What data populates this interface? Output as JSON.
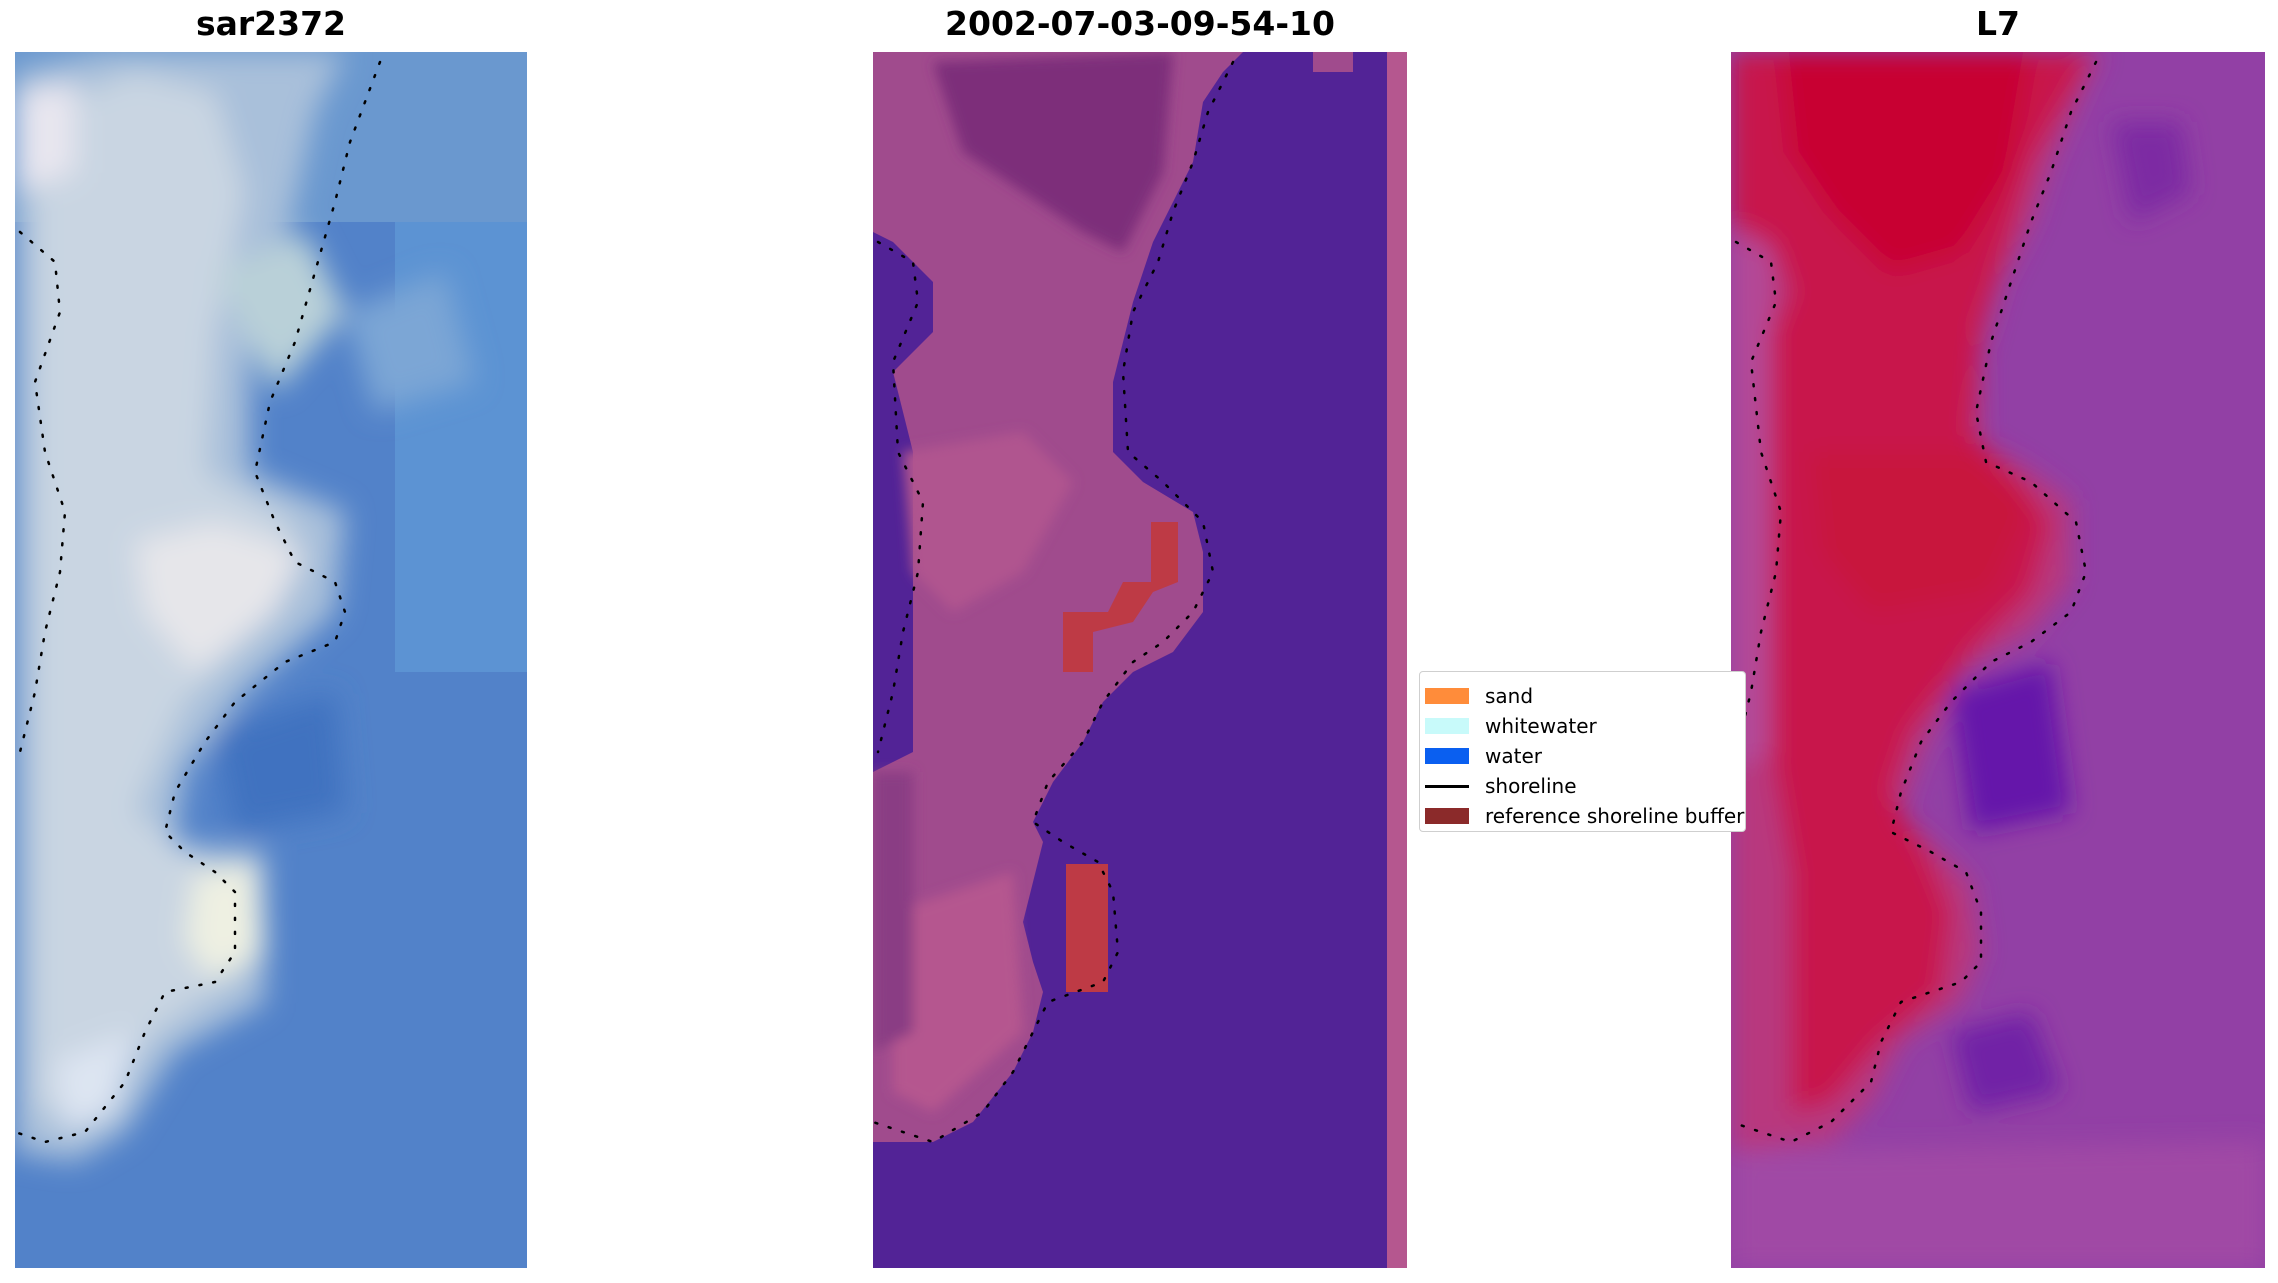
{
  "panels": [
    {
      "title": "sar2372",
      "kind": "rgb-image",
      "colormap": [
        "#4f7ec9",
        "#5a8fd1",
        "#8fb3d8",
        "#c8d3e0",
        "#f3eee6"
      ]
    },
    {
      "title": "2002-07-03-09-54-10",
      "kind": "classified-image",
      "colormap": [
        "#512395",
        "#b5578f",
        "#be3a45"
      ]
    },
    {
      "title": "L7",
      "kind": "probability-image",
      "colormap": [
        "#5a0ea8",
        "#8d3aa6",
        "#b046a0",
        "#c8145a",
        "#c8052f"
      ]
    }
  ],
  "legend": {
    "items": [
      {
        "label": "sand",
        "color": "#ff8c3a",
        "type": "patch"
      },
      {
        "label": "whitewater",
        "color": "#c8fafa",
        "type": "patch"
      },
      {
        "label": "water",
        "color": "#0a5ff0",
        "type": "patch"
      },
      {
        "label": "shoreline",
        "color": "#000000",
        "type": "line"
      },
      {
        "label": "reference shoreline buffer",
        "color": "#8b2a2a",
        "type": "patch"
      }
    ]
  }
}
